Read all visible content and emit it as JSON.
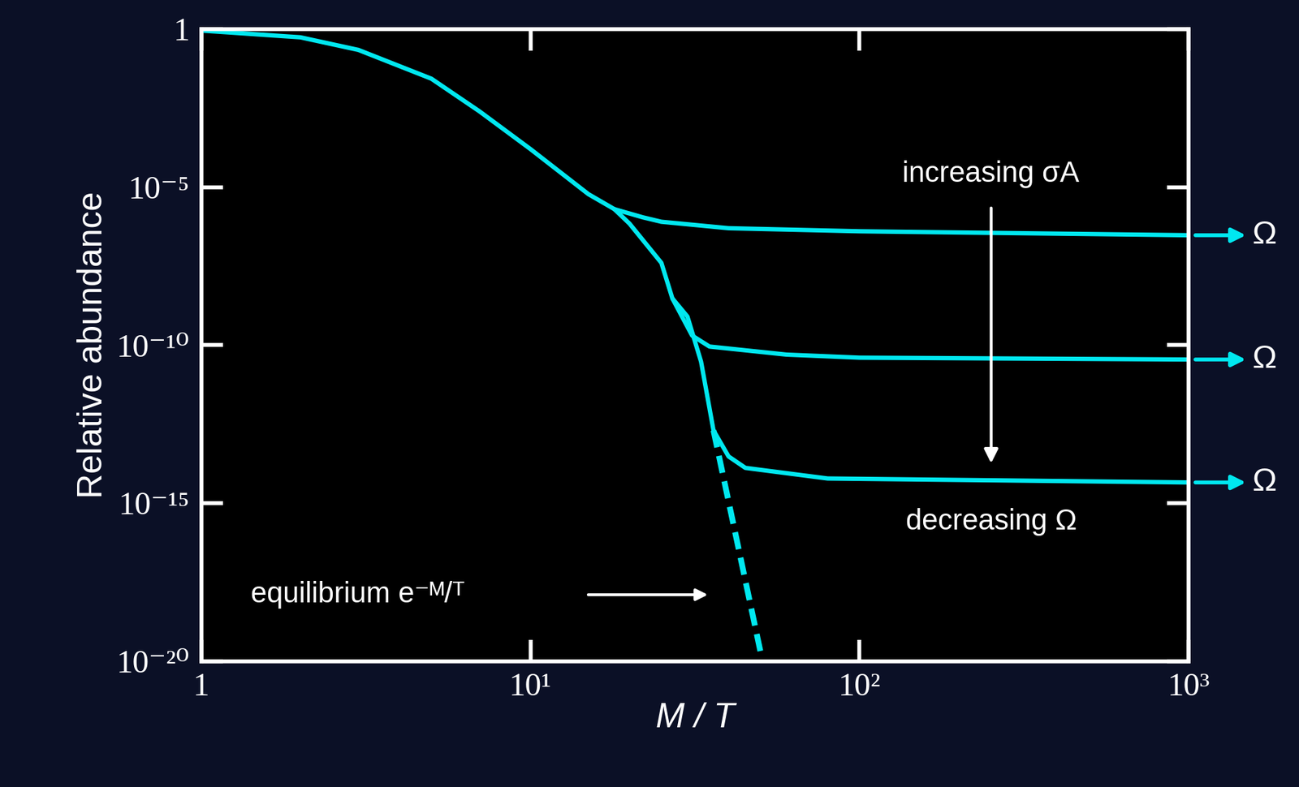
{
  "chart_data": {
    "type": "line",
    "x_label": "M / T",
    "y_label": "Relative abundance",
    "log": true,
    "xlim": [
      1,
      1000
    ],
    "ylim": [
      1e-20,
      1
    ],
    "xticks": [
      {
        "value": 1,
        "label": "1"
      },
      {
        "value": 10,
        "label": "10¹"
      },
      {
        "value": 100,
        "label": "10²"
      },
      {
        "value": 1000,
        "label": "10³"
      }
    ],
    "yticks": [
      {
        "value": 1e-20,
        "label": "10⁻²⁰"
      },
      {
        "value": 1e-15,
        "label": "10⁻¹⁵"
      },
      {
        "value": 1e-10,
        "label": "10⁻¹⁰"
      },
      {
        "value": 1e-05,
        "label": "10⁻⁵"
      },
      {
        "value": 1,
        "label": "1"
      }
    ],
    "grid": false,
    "annotations": [
      "increasing σA",
      "decreasing Ω",
      "equilibrium e⁻ᴹ/ᵀ"
    ],
    "series": [
      {
        "color": "#00e8f0",
        "line_style": "solid",
        "x": [
          1,
          2,
          3,
          5,
          7,
          10,
          15,
          18,
          20,
          25,
          27,
          30,
          33,
          36
        ],
        "values": [
          0.9,
          0.55,
          0.22,
          0.027,
          0.0025,
          0.00016,
          6e-06,
          2e-06,
          7e-07,
          4e-08,
          3e-09,
          8e-10,
          3e-11,
          2e-13
        ]
      },
      {
        "color": "#00e8f0",
        "line_style": "dashed",
        "x": [
          36,
          50
        ],
        "values": [
          2e-13,
          2e-20
        ]
      },
      {
        "color": "#00e8f0",
        "line_style": "solid",
        "end_label": "Ω",
        "x": [
          18,
          22,
          25,
          40,
          100,
          1000
        ],
        "values": [
          2e-06,
          1.1e-06,
          8e-07,
          5e-07,
          4e-07,
          3e-07
        ]
      },
      {
        "color": "#00e8f0",
        "line_style": "solid",
        "end_label": "Ω",
        "x": [
          27,
          31,
          35,
          60,
          100,
          1000
        ],
        "values": [
          3e-09,
          2e-10,
          9e-11,
          5e-11,
          4e-11,
          3.5e-11
        ]
      },
      {
        "color": "#00e8f0",
        "line_style": "solid",
        "end_label": "Ω",
        "x": [
          36,
          40,
          45,
          80,
          1000
        ],
        "values": [
          2e-13,
          3e-14,
          1.3e-14,
          6e-15,
          4.5e-15
        ]
      }
    ]
  }
}
